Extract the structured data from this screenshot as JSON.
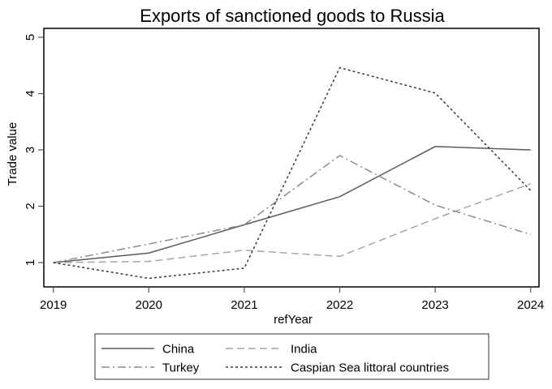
{
  "chart_data": {
    "type": "line",
    "title": "Exports of sanctioned goods to Russia",
    "xlabel": "refYear",
    "ylabel": "Trade value",
    "x": [
      2019,
      2020,
      2021,
      2022,
      2023,
      2024
    ],
    "x_tick_labels": [
      "2019",
      "2020",
      "2021",
      "2022",
      "2023",
      "2024"
    ],
    "y_ticks": [
      1,
      2,
      3,
      4,
      5
    ],
    "y_tick_labels": [
      "1",
      "2",
      "3",
      "4",
      "5"
    ],
    "ylim": [
      0.55,
      5.2
    ],
    "grid": false,
    "legend_position": "bottom",
    "series": [
      {
        "name": "China",
        "values": [
          1.0,
          1.17,
          1.67,
          2.17,
          3.06,
          3.0
        ],
        "color": "#5a5a5a",
        "dash": "solid"
      },
      {
        "name": "India",
        "values": [
          1.0,
          1.02,
          1.22,
          1.11,
          1.78,
          2.4
        ],
        "color": "#a6a6a6",
        "dash": "long-dash"
      },
      {
        "name": "Turkey",
        "values": [
          1.0,
          1.33,
          1.67,
          2.9,
          2.02,
          1.5
        ],
        "color": "#8c8c8c",
        "dash": "dash-dot"
      },
      {
        "name": "Caspian Sea littoral countries",
        "values": [
          1.0,
          0.72,
          0.9,
          4.46,
          4.01,
          2.28
        ],
        "color": "#3a3a3a",
        "dash": "short-dash"
      }
    ]
  },
  "legend": {
    "items": [
      {
        "label": "China"
      },
      {
        "label": "India"
      },
      {
        "label": "Turkey"
      },
      {
        "label": "Caspian Sea littoral countries"
      }
    ]
  }
}
